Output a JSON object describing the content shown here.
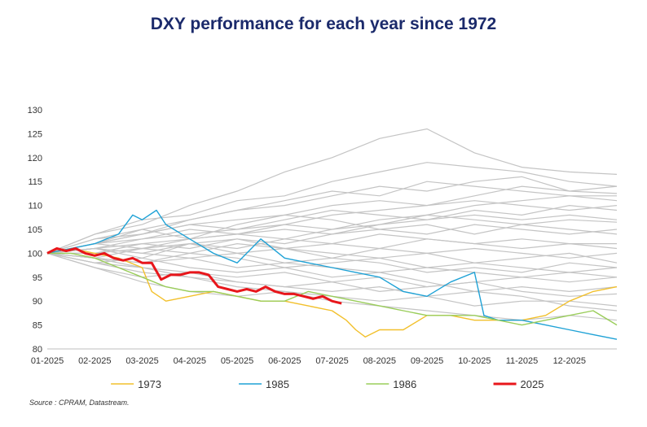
{
  "title": "DXY performance for each year since 1972",
  "source": "Source : CPRAM, Datastream.",
  "chart_data": {
    "type": "line",
    "title": "DXY performance for each year since 1972",
    "ylim": [
      80,
      130
    ],
    "yticks": [
      80,
      85,
      90,
      95,
      100,
      105,
      110,
      115,
      120,
      125,
      130
    ],
    "x_tick_labels": [
      "01-2025",
      "02-2025",
      "03-2025",
      "04-2025",
      "05-2025",
      "06-2025",
      "07-2025",
      "08-2025",
      "09-2025",
      "10-2025",
      "11-2025",
      "12-2025"
    ],
    "x_unit": "month index (0 = start of January, 12 = end of December)",
    "xlim": [
      0,
      12
    ],
    "grid": false,
    "legend_position": "bottom",
    "background_years_note": "Grey lines: all other years since 1972 (unlabelled), indexed to 100",
    "background_series": [
      {
        "x": [
          0,
          1,
          2,
          3,
          4,
          5,
          6,
          7,
          8,
          9,
          10,
          11,
          12
        ],
        "values": [
          100,
          104,
          106,
          110,
          113,
          117,
          120,
          124,
          126,
          121,
          118,
          117,
          116.5
        ]
      },
      {
        "x": [
          0,
          1,
          2,
          3,
          4,
          5,
          6,
          7,
          8,
          9,
          10,
          11,
          12
        ],
        "values": [
          100,
          103,
          105,
          107,
          109,
          111,
          113,
          112,
          115,
          114,
          113,
          112,
          112
        ]
      },
      {
        "x": [
          0,
          1,
          2,
          3,
          4,
          5,
          6,
          7,
          8,
          9,
          10,
          11,
          12
        ],
        "values": [
          100,
          102,
          104,
          106,
          107,
          108,
          110,
          111,
          110,
          112,
          114,
          113,
          114
        ]
      },
      {
        "x": [
          0,
          1,
          2,
          3,
          4,
          5,
          6,
          7,
          8,
          9,
          10,
          11,
          12
        ],
        "values": [
          100,
          101,
          103,
          104,
          105,
          106,
          108,
          109,
          110,
          111,
          110,
          109,
          110
        ]
      },
      {
        "x": [
          0,
          1,
          2,
          3,
          4,
          5,
          6,
          7,
          8,
          9,
          10,
          11,
          12
        ],
        "values": [
          100,
          102,
          101,
          103,
          104,
          105,
          104,
          106,
          107,
          108,
          107,
          108,
          107
        ]
      },
      {
        "x": [
          0,
          1,
          2,
          3,
          4,
          5,
          6,
          7,
          8,
          9,
          10,
          11,
          12
        ],
        "values": [
          100,
          101,
          102,
          101,
          103,
          102,
          104,
          105,
          104,
          106,
          105,
          104,
          105
        ]
      },
      {
        "x": [
          0,
          1,
          2,
          3,
          4,
          5,
          6,
          7,
          8,
          9,
          10,
          11,
          12
        ],
        "values": [
          100,
          100,
          101,
          102,
          101,
          103,
          102,
          101,
          103,
          102,
          103,
          102,
          102
        ]
      },
      {
        "x": [
          0,
          1,
          2,
          3,
          4,
          5,
          6,
          7,
          8,
          9,
          10,
          11,
          12
        ],
        "values": [
          100,
          101,
          100,
          99,
          100,
          101,
          100,
          99,
          100,
          101,
          100,
          99,
          100
        ]
      },
      {
        "x": [
          0,
          1,
          2,
          3,
          4,
          5,
          6,
          7,
          8,
          9,
          10,
          11,
          12
        ],
        "values": [
          100,
          99,
          98,
          99,
          97,
          98,
          97,
          96,
          97,
          98,
          97,
          96,
          97
        ]
      },
      {
        "x": [
          0,
          1,
          2,
          3,
          4,
          5,
          6,
          7,
          8,
          9,
          10,
          11,
          12
        ],
        "values": [
          100,
          99,
          97,
          96,
          95,
          96,
          94,
          95,
          93,
          94,
          95,
          94,
          95
        ]
      },
      {
        "x": [
          0,
          1,
          2,
          3,
          4,
          5,
          6,
          7,
          8,
          9,
          10,
          11,
          12
        ],
        "values": [
          100,
          98,
          96,
          95,
          94,
          93,
          92,
          93,
          91,
          92,
          93,
          92,
          93
        ]
      },
      {
        "x": [
          0,
          1,
          2,
          3,
          4,
          5,
          6,
          7,
          8,
          9,
          10,
          11,
          12
        ],
        "values": [
          100,
          98,
          97,
          95,
          93,
          92,
          91,
          90,
          91,
          89,
          90,
          90,
          89
        ]
      },
      {
        "x": [
          0,
          1,
          2,
          3,
          4,
          5,
          6,
          7,
          8,
          9,
          10,
          11,
          12
        ],
        "values": [
          100,
          97,
          95,
          96,
          94,
          93,
          94,
          92,
          93,
          94,
          92,
          91,
          91.5
        ]
      },
      {
        "x": [
          0,
          1,
          2,
          3,
          4,
          5,
          6,
          7,
          8,
          9,
          10,
          11,
          12
        ],
        "values": [
          100,
          102,
          105,
          103,
          106,
          108,
          107,
          105,
          106,
          104,
          106,
          105,
          104
        ]
      },
      {
        "x": [
          0,
          1,
          2,
          3,
          4,
          5,
          6,
          7,
          8,
          9,
          10,
          11,
          12
        ],
        "values": [
          100,
          103,
          104,
          106,
          105,
          107,
          109,
          108,
          107,
          109,
          108,
          110,
          109
        ]
      },
      {
        "x": [
          0,
          1,
          2,
          3,
          4,
          5,
          6,
          7,
          8,
          9,
          10,
          11,
          12
        ],
        "values": [
          100,
          101,
          99,
          102,
          100,
          98,
          99,
          101,
          100,
          98,
          99,
          100,
          98
        ]
      },
      {
        "x": [
          0,
          1,
          2,
          3,
          4,
          5,
          6,
          7,
          8,
          9,
          10,
          11,
          12
        ],
        "values": [
          100,
          99,
          101,
          100,
          102,
          101,
          99,
          98,
          96,
          97,
          96,
          98,
          97
        ]
      },
      {
        "x": [
          0,
          1,
          2,
          3,
          4,
          5,
          6,
          7,
          8,
          9,
          10,
          11,
          12
        ],
        "values": [
          100,
          102,
          104,
          107,
          109,
          110,
          112,
          114,
          113,
          115,
          116,
          113,
          112.5
        ]
      },
      {
        "x": [
          0,
          1,
          2,
          3,
          4,
          5,
          6,
          7,
          8,
          9,
          10,
          11,
          12
        ],
        "values": [
          100,
          104,
          107,
          108,
          111,
          112,
          115,
          117,
          119,
          118,
          117,
          115,
          114
        ]
      },
      {
        "x": [
          0,
          1,
          2,
          3,
          4,
          5,
          6,
          7,
          8,
          9,
          10,
          11,
          12
        ],
        "values": [
          100,
          98,
          99,
          97,
          96,
          97,
          95,
          96,
          94,
          92,
          91,
          89,
          88
        ]
      },
      {
        "x": [
          0,
          1,
          2,
          3,
          4,
          5,
          6,
          7,
          8,
          9,
          10,
          11,
          12
        ],
        "values": [
          100,
          101,
          100,
          102,
          103,
          101,
          102,
          104,
          103,
          102,
          101,
          102,
          101
        ]
      },
      {
        "x": [
          0,
          1,
          2,
          3,
          4,
          5,
          6,
          7,
          8,
          9,
          10,
          11,
          12
        ],
        "values": [
          100,
          100,
          102,
          103,
          104,
          106,
          105,
          107,
          108,
          107,
          106,
          107,
          106.5
        ]
      },
      {
        "x": [
          0,
          1,
          2,
          3,
          4,
          5,
          6,
          7,
          8,
          9,
          10,
          11,
          12
        ],
        "values": [
          100,
          99,
          98,
          100,
          99,
          97,
          98,
          99,
          97,
          96,
          95,
          96,
          95
        ]
      },
      {
        "x": [
          0,
          1,
          2,
          3,
          4,
          5,
          6,
          7,
          8,
          9,
          10,
          11,
          12
        ],
        "values": [
          100,
          97,
          94,
          92,
          91,
          92,
          90,
          89,
          88,
          87,
          86,
          87,
          86
        ]
      },
      {
        "x": [
          0,
          1,
          2,
          3,
          4,
          5,
          6,
          7,
          8,
          9,
          10,
          11,
          12
        ],
        "values": [
          100,
          102,
          103,
          105,
          104,
          103,
          105,
          106,
          108,
          110,
          111,
          112,
          111
        ]
      }
    ],
    "series": [
      {
        "name": "1973",
        "color": "#f2c02c",
        "x": [
          0,
          0.5,
          1,
          1.5,
          2,
          2.2,
          2.5,
          3,
          3.5,
          4,
          4.5,
          5,
          5.5,
          6,
          6.3,
          6.5,
          6.7,
          7,
          7.5,
          8,
          8.5,
          9,
          9.5,
          10,
          10.5,
          11,
          11.5,
          12
        ],
        "values": [
          100,
          101,
          100,
          99,
          97,
          92,
          90,
          91,
          92,
          91,
          90,
          90,
          89,
          88,
          86,
          84,
          82.5,
          84,
          84,
          87,
          87,
          86,
          86,
          86,
          87,
          90,
          92,
          93
        ]
      },
      {
        "name": "1985",
        "color": "#1fa2d6",
        "x": [
          0,
          0.5,
          1,
          1.5,
          1.8,
          2,
          2.3,
          2.5,
          3,
          3.5,
          4,
          4.5,
          5,
          5.5,
          6,
          6.5,
          7,
          7.5,
          8,
          8.5,
          9,
          9.2,
          9.5,
          10,
          10.5,
          11,
          11.5,
          12
        ],
        "values": [
          100,
          101,
          102,
          104,
          108,
          107,
          109,
          106,
          103,
          100,
          98,
          103,
          99,
          98,
          97,
          96,
          95,
          92,
          91,
          94,
          96,
          87,
          86,
          86,
          85,
          84,
          83,
          82
        ]
      },
      {
        "name": "1986",
        "color": "#9acd5a",
        "x": [
          0,
          0.5,
          1,
          1.5,
          2,
          2.5,
          3,
          3.5,
          4,
          4.5,
          5,
          5.5,
          6,
          6.5,
          7,
          7.5,
          8,
          8.5,
          9,
          9.5,
          10,
          10.5,
          11,
          11.5,
          12
        ],
        "values": [
          100,
          100,
          99,
          97,
          95,
          93,
          92,
          92,
          91,
          90,
          90,
          92,
          91,
          90,
          89,
          88,
          87,
          87,
          87,
          86,
          85,
          86,
          87,
          88,
          85
        ]
      },
      {
        "name": "2025",
        "color": "#e8161b",
        "x": [
          0,
          0.2,
          0.4,
          0.6,
          0.8,
          1,
          1.2,
          1.4,
          1.6,
          1.8,
          2,
          2.2,
          2.4,
          2.6,
          2.8,
          3,
          3.2,
          3.4,
          3.6,
          3.8,
          4,
          4.2,
          4.4,
          4.6,
          4.8,
          5,
          5.2,
          5.4,
          5.6,
          5.8,
          6,
          6.2
        ],
        "values": [
          100,
          101,
          100.5,
          101,
          100,
          99.5,
          100,
          99,
          98.5,
          99,
          98,
          98,
          94.5,
          95.5,
          95.5,
          96,
          96,
          95.5,
          93,
          92.5,
          92,
          92.5,
          92,
          93,
          92,
          91.5,
          91.5,
          91,
          90.5,
          91,
          90,
          89.5
        ]
      }
    ]
  }
}
